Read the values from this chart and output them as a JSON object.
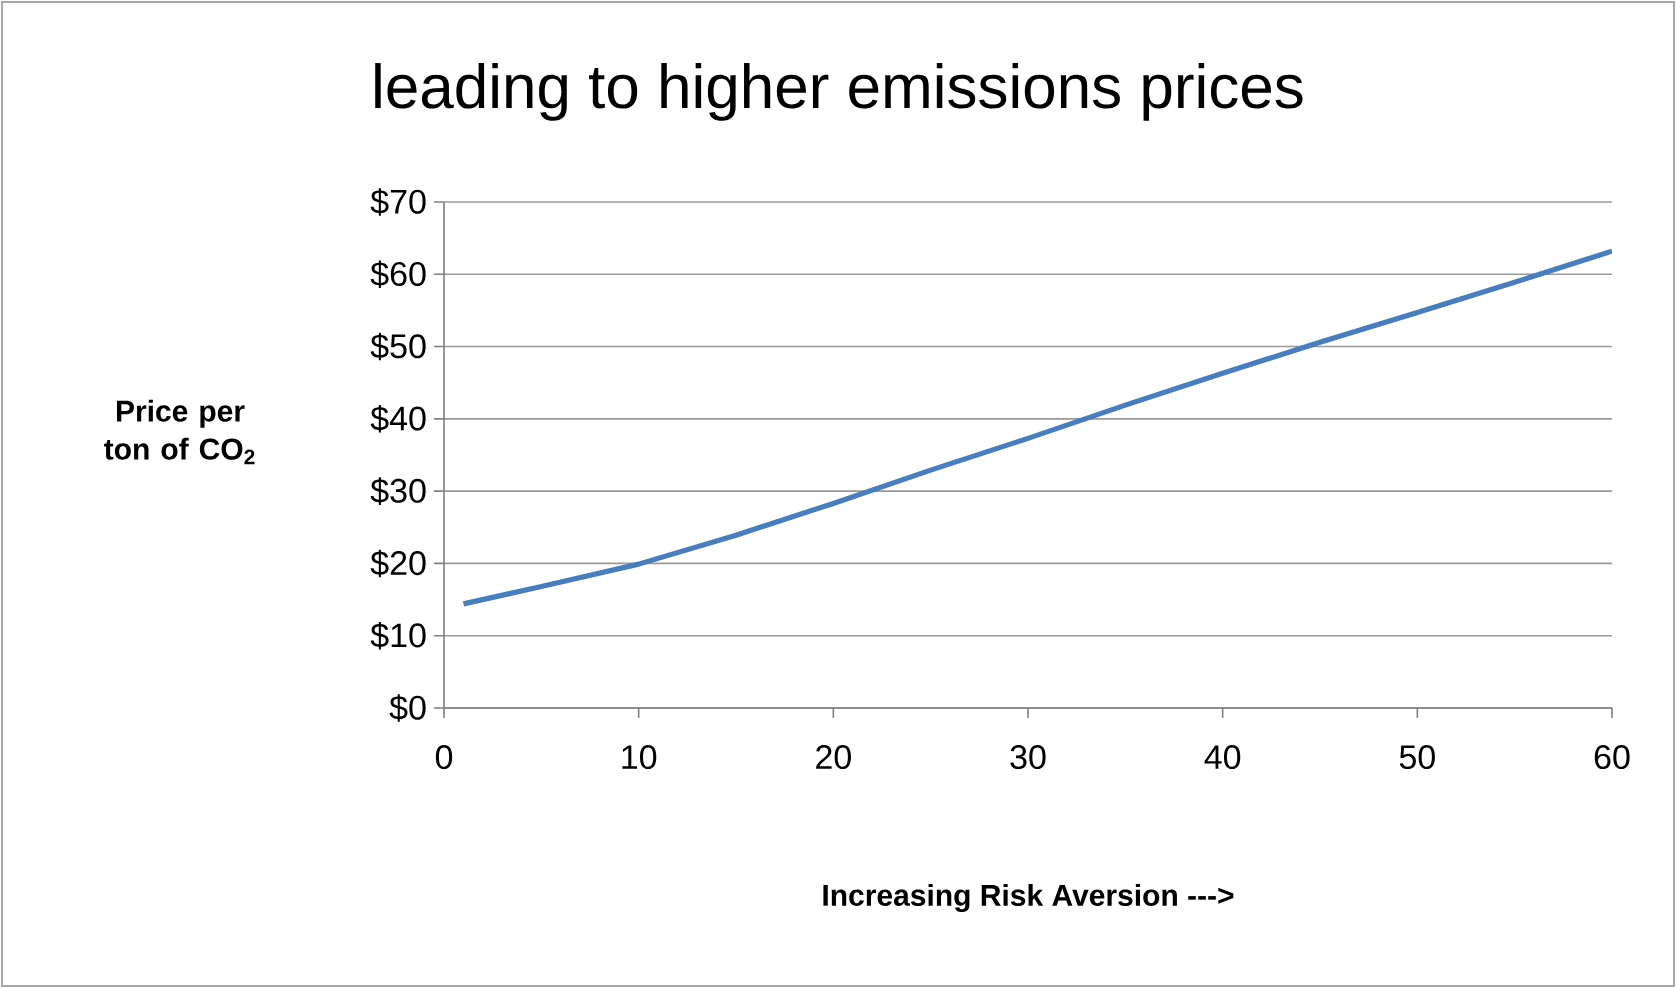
{
  "chart_data": {
    "type": "line",
    "title": "leading to higher emissions prices",
    "xlabel": "Increasing Risk Aversion --->",
    "ylabel": "Price per ton of CO$_{2}$",
    "x": [
      1,
      5,
      10,
      15,
      20,
      25,
      30,
      35,
      40,
      45,
      50,
      55,
      60
    ],
    "series": [
      {
        "color": "#4a7ebb",
        "values": [
          14.4,
          16.8,
          19.9,
          23.9,
          28.3,
          32.9,
          37.3,
          41.9,
          46.3,
          50.6,
          54.7,
          58.9,
          63.2
        ]
      }
    ],
    "xlim": [
      0,
      60
    ],
    "xticks": [
      0,
      10,
      20,
      30,
      40,
      50,
      60
    ],
    "ylim": [
      0,
      70
    ],
    "yticks": [
      {
        "value": 0,
        "label": "$0"
      },
      {
        "value": 10,
        "label": "$10"
      },
      {
        "value": 20,
        "label": "$20"
      },
      {
        "value": 30,
        "label": "$30"
      },
      {
        "value": 40,
        "label": "$40"
      },
      {
        "value": 50,
        "label": "$50"
      },
      {
        "value": 60,
        "label": "$60"
      },
      {
        "value": 70,
        "label": "$70"
      }
    ],
    "grid": "y",
    "marker": "none",
    "line_style": "solid"
  }
}
